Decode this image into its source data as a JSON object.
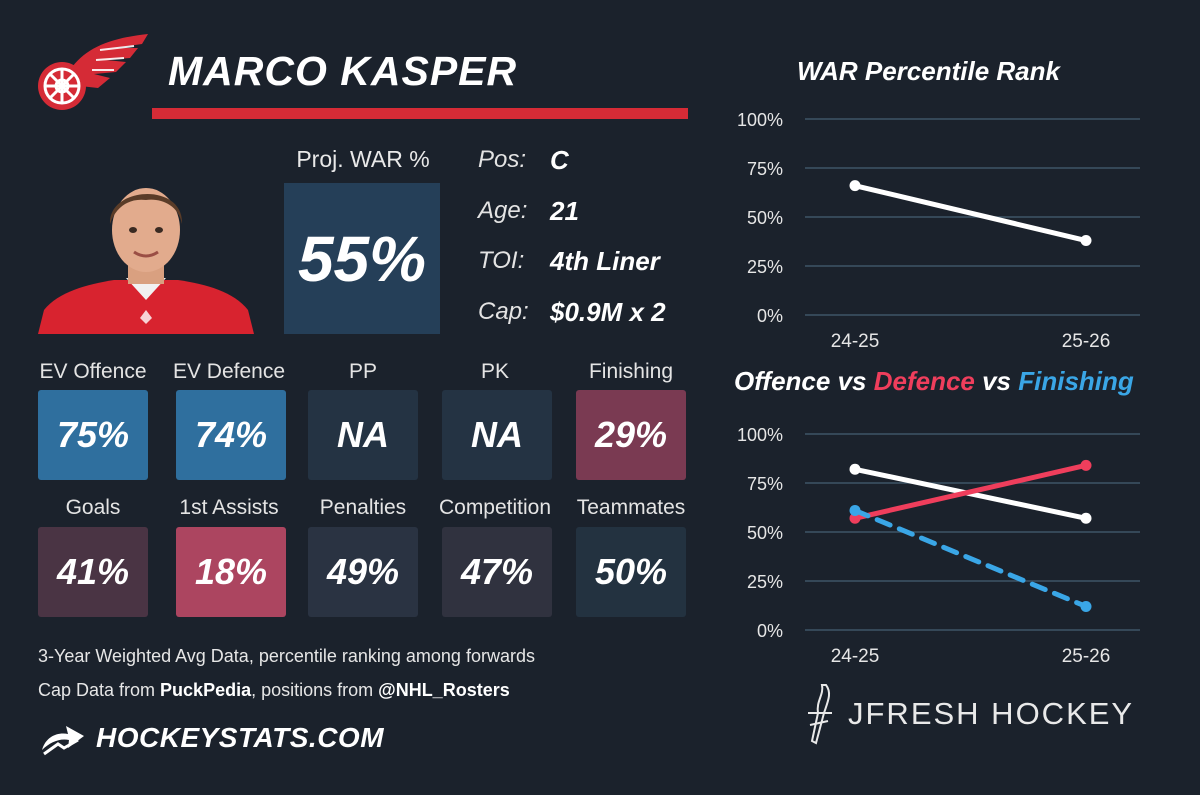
{
  "player": {
    "name": "MARCO KASPER",
    "team_logo": "red-wings-wheel-logo",
    "headshot": "player-headshot"
  },
  "projected_war": {
    "label": "Proj. WAR %",
    "value": "55%"
  },
  "info": [
    {
      "label": "Pos:",
      "value": "C"
    },
    {
      "label": "Age:",
      "value": "21"
    },
    {
      "label": "TOI:",
      "value": "4th Liner"
    },
    {
      "label": "Cap:",
      "value": "$0.9M x 2"
    }
  ],
  "tiles": [
    {
      "label": "EV Offence",
      "value": "75%",
      "percent": 75,
      "color": "#2f6f9e"
    },
    {
      "label": "EV Defence",
      "value": "74%",
      "percent": 74,
      "color": "#2f6f9e"
    },
    {
      "label": "PP",
      "value": "NA",
      "percent": null,
      "color": "#243343"
    },
    {
      "label": "PK",
      "value": "NA",
      "percent": null,
      "color": "#243343"
    },
    {
      "label": "Finishing",
      "value": "29%",
      "percent": 29,
      "color": "#7a3a52"
    },
    {
      "label": "Goals",
      "value": "41%",
      "percent": 41,
      "color": "#4a3444"
    },
    {
      "label": "1st Assists",
      "value": "18%",
      "percent": 18,
      "color": "#ac4560"
    },
    {
      "label": "Penalties",
      "value": "49%",
      "percent": 49,
      "color": "#2a3342"
    },
    {
      "label": "Competition",
      "value": "47%",
      "percent": 47,
      "color": "#30323f"
    },
    {
      "label": "Teammates",
      "value": "50%",
      "percent": 50,
      "color": "#233240"
    }
  ],
  "footnotes": {
    "line1": "3-Year Weighted Avg Data, percentile ranking among forwards",
    "line2_prefix": "Cap Data from ",
    "line2_source": "PuckPedia",
    "line2_middle": ", positions from ",
    "line2_handle": "@NHL_Rosters",
    "brand": "HOCKEYSTATS.COM",
    "brand_icon": "hockeystats-arrow-icon"
  },
  "watermark": {
    "text": "JFRESH HOCKEY",
    "icon": "jfresh-stick-icon"
  },
  "colors": {
    "background": "#1b222c",
    "accent_red": "#d52b36",
    "war_line": "#ffffff",
    "offence": "#ffffff",
    "defence": "#ef3e5c",
    "finishing": "#3aa6e6",
    "grid": "#3e5566"
  },
  "chart_data": [
    {
      "type": "line",
      "title": "WAR Percentile Rank",
      "categories": [
        "24-25",
        "25-26"
      ],
      "ylim": [
        0,
        100
      ],
      "yticks": [
        "0%",
        "25%",
        "50%",
        "75%",
        "100%"
      ],
      "grid": true,
      "series": [
        {
          "values": [
            66,
            38
          ],
          "color": "#ffffff",
          "dashed": false
        }
      ]
    },
    {
      "type": "line",
      "title_parts": [
        {
          "text": "Offence",
          "color": "#ffffff"
        },
        {
          "text": " vs ",
          "color": "#ffffff"
        },
        {
          "text": "Defence",
          "color": "#ef3e5c"
        },
        {
          "text": " vs ",
          "color": "#ffffff"
        },
        {
          "text": "Finishing",
          "color": "#3aa6e6"
        }
      ],
      "categories": [
        "24-25",
        "25-26"
      ],
      "ylim": [
        0,
        100
      ],
      "yticks": [
        "0%",
        "25%",
        "50%",
        "75%",
        "100%"
      ],
      "grid": true,
      "series": [
        {
          "name": "Offence",
          "values": [
            82,
            57
          ],
          "color": "#ffffff",
          "dashed": false
        },
        {
          "name": "Defence",
          "values": [
            57,
            84
          ],
          "color": "#ef3e5c",
          "dashed": false
        },
        {
          "name": "Finishing",
          "values": [
            61,
            12
          ],
          "color": "#3aa6e6",
          "dashed": true
        }
      ]
    }
  ]
}
